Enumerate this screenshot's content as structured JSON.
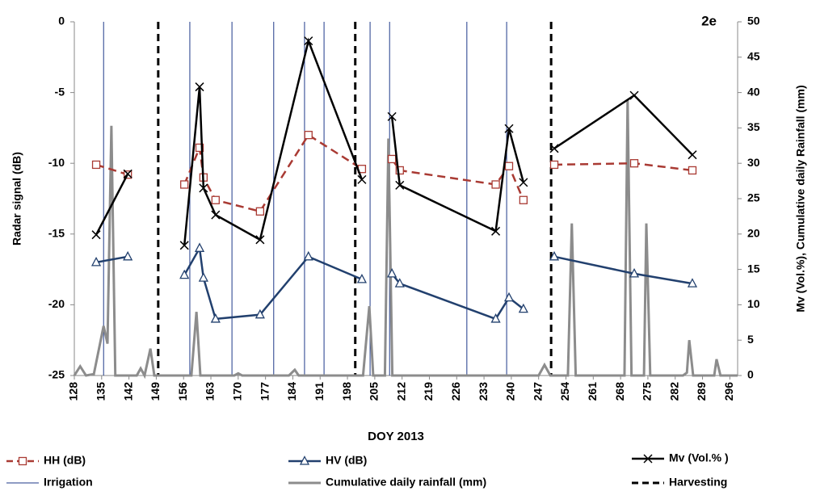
{
  "chart_data": {
    "type": "line",
    "annotation": "2e",
    "x_label": "DOY 2013",
    "y_label": "Radar signal (dB)",
    "y2_label": "Mv (Vol.%), Cumulative daily Rainfall (mm)",
    "xlim": [
      128,
      298
    ],
    "xticks": [
      128,
      135,
      142,
      149,
      156,
      163,
      170,
      177,
      184,
      191,
      198,
      205,
      212,
      219,
      226,
      233,
      240,
      247,
      254,
      261,
      268,
      275,
      282,
      289,
      296
    ],
    "ylim": [
      -25,
      0
    ],
    "yticks": [
      -25,
      -20,
      -15,
      -10,
      -5,
      0
    ],
    "y2lim": [
      0,
      50
    ],
    "y2ticks": [
      0,
      5,
      10,
      15,
      20,
      25,
      30,
      35,
      40,
      45,
      50
    ],
    "series": [
      {
        "name": "HH (dB)",
        "color": "#a93a33",
        "marker": "square",
        "dash": true,
        "x": [
          133.6,
          141.7,
          null,
          156.2,
          160.1,
          161.1,
          164.2,
          175.6,
          188,
          201.7,
          null,
          209.4,
          211.4,
          236,
          239.4,
          243.1,
          null,
          251,
          271.5,
          286.4
        ],
        "values": [
          -10.1,
          -10.8,
          null,
          -11.5,
          -8.9,
          -11.0,
          -12.6,
          -13.4,
          -8.0,
          -10.4,
          null,
          -9.7,
          -10.5,
          -11.5,
          -10.2,
          -12.6,
          null,
          -10.1,
          -10.0,
          -10.5
        ]
      },
      {
        "name": "HV (dB)",
        "color": "#22406e",
        "marker": "triangle",
        "dash": false,
        "x": [
          133.6,
          141.7,
          null,
          156.2,
          160.1,
          161.1,
          164.2,
          175.6,
          188,
          201.7,
          null,
          209.4,
          211.4,
          236,
          239.4,
          243.1,
          null,
          251,
          271.5,
          286.4
        ],
        "values": [
          -17.0,
          -16.6,
          null,
          -17.9,
          -16.0,
          -18.1,
          -21.0,
          -20.7,
          -16.6,
          -18.2,
          null,
          -17.8,
          -18.5,
          -21.0,
          -19.5,
          -20.3,
          null,
          -16.6,
          -17.8,
          -18.5
        ]
      },
      {
        "name": "Mv (Vol.% )",
        "color": "#000000",
        "marker": "cross",
        "dash": false,
        "axis": "y2",
        "x": [
          133.6,
          141.7,
          null,
          156.2,
          160.1,
          161.1,
          164.2,
          175.6,
          188,
          201.7,
          null,
          209.4,
          211.4,
          236,
          239.4,
          243.1,
          null,
          251,
          271.5,
          286.4
        ],
        "values": [
          19.9,
          28.5,
          null,
          18.4,
          40.8,
          26.5,
          22.7,
          19.2,
          47.3,
          27.7,
          null,
          36.6,
          26.9,
          20.4,
          34.9,
          27.3,
          null,
          32.1,
          39.6,
          31.2
        ]
      },
      {
        "name": "Cumulative daily rainfall (mm)",
        "color": "#8c8c8c",
        "marker": "none",
        "dash": false,
        "axis": "y2",
        "x": [
          128,
          129.5,
          131,
          133,
          135.5,
          136.5,
          137.5,
          138.5,
          140,
          144,
          145,
          146,
          147.5,
          148.5,
          158,
          159.3,
          160.3,
          161.3,
          169,
          170,
          171,
          183,
          184.5,
          185.5,
          202,
          203.6,
          204.6,
          207.6,
          208.5,
          209.5,
          247,
          248.5,
          250,
          254.5,
          255.5,
          256.5,
          269,
          269.8,
          270.8,
          274,
          274.6,
          275.6,
          284,
          285,
          285.6,
          286.6,
          292,
          292.6,
          293.6,
          298
        ],
        "values": [
          0,
          1.3,
          0,
          0.2,
          7,
          4.5,
          35.3,
          0,
          0,
          0,
          1,
          0,
          3.8,
          0,
          0,
          9,
          0,
          0,
          0,
          0.3,
          0,
          0,
          0.8,
          0,
          0,
          9.8,
          0,
          0,
          33.5,
          0,
          0,
          1.5,
          0,
          0,
          21.5,
          0,
          0,
          39,
          0,
          0,
          21.5,
          0,
          0,
          0.4,
          5,
          0,
          0,
          2.3,
          0,
          0
        ]
      }
    ],
    "vlines": [
      {
        "name": "Irrigation",
        "color": "#1f3a8a",
        "dash": false,
        "x": [
          135.5,
          157.6,
          168.4,
          179.1,
          187,
          192,
          203.8,
          208.8,
          228.6,
          238.8
        ]
      },
      {
        "name": "Harvesting",
        "color": "#000000",
        "dash": true,
        "x": [
          149.5,
          200,
          250.2
        ]
      }
    ]
  }
}
